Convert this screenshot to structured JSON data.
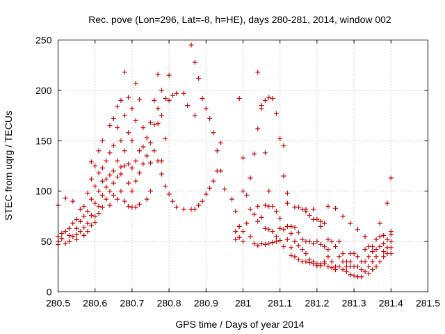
{
  "chart_data": {
    "type": "scatter",
    "title": "Rec. pove (Lon=296, Lat=-8, h=HE), days 280-281, 2014, window 002",
    "xlabel": "GPS time / Days of year 2014",
    "ylabel": "STEC from uqrg / TECUs",
    "xlim": [
      280.5,
      281.5
    ],
    "ylim": [
      0,
      250
    ],
    "x_ticks": [
      280.5,
      280.6,
      280.7,
      280.8,
      280.9,
      281,
      281.1,
      281.2,
      281.3,
      281.4,
      281.5
    ],
    "x_tick_labels": [
      "280.5",
      "280.6",
      "280.7",
      "280.8",
      "280.9",
      "281",
      "281.1",
      "281.2",
      "281.3",
      "281.4",
      "281.5"
    ],
    "y_ticks": [
      0,
      50,
      100,
      150,
      200,
      250
    ],
    "y_tick_labels": [
      "0",
      "50",
      "100",
      "150",
      "200",
      "250"
    ],
    "grid": true,
    "marker": "+",
    "color": "#cc0000",
    "points": [
      [
        280.5,
        86
      ],
      [
        280.5,
        55
      ],
      [
        280.5,
        50
      ],
      [
        280.5,
        47
      ],
      [
        280.51,
        58
      ],
      [
        280.51,
        53
      ],
      [
        280.52,
        93
      ],
      [
        280.52,
        60
      ],
      [
        280.52,
        48
      ],
      [
        280.53,
        63
      ],
      [
        280.53,
        56
      ],
      [
        280.53,
        50
      ],
      [
        280.54,
        90
      ],
      [
        280.54,
        68
      ],
      [
        280.54,
        55
      ],
      [
        280.55,
        72
      ],
      [
        280.55,
        63
      ],
      [
        280.55,
        57
      ],
      [
        280.55,
        52
      ],
      [
        280.56,
        82
      ],
      [
        280.56,
        70
      ],
      [
        280.56,
        60
      ],
      [
        280.57,
        85
      ],
      [
        280.57,
        75
      ],
      [
        280.57,
        64
      ],
      [
        280.57,
        56
      ],
      [
        280.58,
        98
      ],
      [
        280.58,
        80
      ],
      [
        280.58,
        68
      ],
      [
        280.58,
        60
      ],
      [
        280.59,
        129
      ],
      [
        280.59,
        112
      ],
      [
        280.59,
        92
      ],
      [
        280.59,
        76
      ],
      [
        280.59,
        66
      ],
      [
        280.6,
        125
      ],
      [
        280.6,
        105
      ],
      [
        280.6,
        88
      ],
      [
        280.6,
        75
      ],
      [
        280.6,
        69
      ],
      [
        280.61,
        140
      ],
      [
        280.61,
        118
      ],
      [
        280.61,
        100
      ],
      [
        280.61,
        85
      ],
      [
        280.61,
        78
      ],
      [
        280.62,
        150
      ],
      [
        280.62,
        123
      ],
      [
        280.62,
        110
      ],
      [
        280.62,
        96
      ],
      [
        280.62,
        84
      ],
      [
        280.63,
        130
      ],
      [
        280.63,
        112
      ],
      [
        280.63,
        104
      ],
      [
        280.63,
        92
      ],
      [
        280.64,
        165
      ],
      [
        280.64,
        138
      ],
      [
        280.64,
        116
      ],
      [
        280.64,
        100
      ],
      [
        280.64,
        86
      ],
      [
        280.65,
        172
      ],
      [
        280.65,
        145
      ],
      [
        280.65,
        120
      ],
      [
        280.65,
        108
      ],
      [
        280.65,
        96
      ],
      [
        280.66,
        184
      ],
      [
        280.66,
        163
      ],
      [
        280.66,
        130
      ],
      [
        280.66,
        114
      ],
      [
        280.66,
        92
      ],
      [
        280.67,
        190
      ],
      [
        280.67,
        150
      ],
      [
        280.67,
        124
      ],
      [
        280.67,
        117
      ],
      [
        280.67,
        100
      ],
      [
        280.68,
        218
      ],
      [
        280.68,
        175
      ],
      [
        280.68,
        140
      ],
      [
        280.68,
        125
      ],
      [
        280.68,
        90
      ],
      [
        280.69,
        193
      ],
      [
        280.69,
        158
      ],
      [
        280.69,
        127
      ],
      [
        280.69,
        108
      ],
      [
        280.69,
        85
      ],
      [
        280.7,
        182
      ],
      [
        280.7,
        150
      ],
      [
        280.7,
        123
      ],
      [
        280.7,
        100
      ],
      [
        280.7,
        84
      ],
      [
        280.71,
        207
      ],
      [
        280.71,
        170
      ],
      [
        280.71,
        130
      ],
      [
        280.71,
        110
      ],
      [
        280.71,
        84
      ],
      [
        280.72,
        191
      ],
      [
        280.72,
        140
      ],
      [
        280.72,
        118
      ],
      [
        280.72,
        87
      ],
      [
        280.73,
        163
      ],
      [
        280.73,
        144
      ],
      [
        280.73,
        127
      ],
      [
        280.74,
        153
      ],
      [
        280.74,
        135
      ],
      [
        280.74,
        92
      ],
      [
        280.75,
        168
      ],
      [
        280.75,
        148
      ],
      [
        280.75,
        128
      ],
      [
        280.75,
        100
      ],
      [
        280.76,
        190
      ],
      [
        280.76,
        166
      ],
      [
        280.76,
        140
      ],
      [
        280.77,
        216
      ],
      [
        280.77,
        182
      ],
      [
        280.77,
        167
      ],
      [
        280.77,
        130
      ],
      [
        280.78,
        200
      ],
      [
        280.78,
        175
      ],
      [
        280.78,
        130
      ],
      [
        280.78,
        117
      ],
      [
        280.79,
        192
      ],
      [
        280.79,
        152
      ],
      [
        280.79,
        105
      ],
      [
        280.8,
        215
      ],
      [
        280.8,
        190
      ],
      [
        280.8,
        97
      ],
      [
        280.81,
        195
      ],
      [
        280.81,
        90
      ],
      [
        280.82,
        197
      ],
      [
        280.82,
        84
      ],
      [
        280.84,
        197
      ],
      [
        280.84,
        82
      ],
      [
        280.85,
        185
      ],
      [
        280.86,
        245
      ],
      [
        280.86,
        82
      ],
      [
        280.87,
        228
      ],
      [
        280.87,
        175
      ],
      [
        280.87,
        82
      ],
      [
        280.88,
        212
      ],
      [
        280.88,
        86
      ],
      [
        280.89,
        192
      ],
      [
        280.89,
        90
      ],
      [
        280.9,
        182
      ],
      [
        280.9,
        97
      ],
      [
        280.91,
        172
      ],
      [
        280.91,
        103
      ],
      [
        280.92,
        158
      ],
      [
        280.92,
        110
      ],
      [
        280.93,
        140
      ],
      [
        280.93,
        120
      ],
      [
        280.94,
        148
      ],
      [
        280.94,
        120
      ],
      [
        280.95,
        102
      ],
      [
        280.97,
        92
      ],
      [
        280.98,
        80
      ],
      [
        280.98,
        60
      ],
      [
        280.98,
        52
      ],
      [
        280.99,
        192
      ],
      [
        280.99,
        65
      ],
      [
        280.99,
        54
      ],
      [
        281.0,
        133
      ],
      [
        281.0,
        100
      ],
      [
        281.0,
        60
      ],
      [
        281.0,
        50
      ],
      [
        281.01,
        96
      ],
      [
        281.01,
        68
      ],
      [
        281.02,
        113
      ],
      [
        281.02,
        82
      ],
      [
        281.02,
        55
      ],
      [
        281.03,
        137
      ],
      [
        281.03,
        77
      ],
      [
        281.03,
        48
      ],
      [
        281.04,
        218
      ],
      [
        281.04,
        162
      ],
      [
        281.04,
        85
      ],
      [
        281.04,
        70
      ],
      [
        281.04,
        46
      ],
      [
        281.05,
        185
      ],
      [
        281.05,
        182
      ],
      [
        281.05,
        74
      ],
      [
        281.05,
        48
      ],
      [
        281.06,
        190
      ],
      [
        281.06,
        138
      ],
      [
        281.06,
        86
      ],
      [
        281.06,
        63
      ],
      [
        281.06,
        47
      ],
      [
        281.07,
        193
      ],
      [
        281.07,
        100
      ],
      [
        281.07,
        85
      ],
      [
        281.07,
        62
      ],
      [
        281.07,
        48
      ],
      [
        281.08,
        192
      ],
      [
        281.08,
        85
      ],
      [
        281.08,
        60
      ],
      [
        281.08,
        49
      ],
      [
        281.09,
        177
      ],
      [
        281.09,
        80
      ],
      [
        281.09,
        55
      ],
      [
        281.09,
        50
      ],
      [
        281.1,
        152
      ],
      [
        281.1,
        73
      ],
      [
        281.1,
        63
      ],
      [
        281.1,
        51
      ],
      [
        281.11,
        145
      ],
      [
        281.11,
        115
      ],
      [
        281.11,
        62
      ],
      [
        281.11,
        45
      ],
      [
        281.12,
        98
      ],
      [
        281.12,
        88
      ],
      [
        281.12,
        65
      ],
      [
        281.12,
        52
      ],
      [
        281.13,
        65
      ],
      [
        281.13,
        58
      ],
      [
        281.13,
        44
      ],
      [
        281.13,
        36
      ],
      [
        281.14,
        84
      ],
      [
        281.14,
        64
      ],
      [
        281.14,
        50
      ],
      [
        281.14,
        35
      ],
      [
        281.15,
        84
      ],
      [
        281.15,
        59
      ],
      [
        281.15,
        46
      ],
      [
        281.15,
        32
      ],
      [
        281.16,
        82
      ],
      [
        281.16,
        52
      ],
      [
        281.16,
        42
      ],
      [
        281.16,
        30
      ],
      [
        281.17,
        80
      ],
      [
        281.17,
        50
      ],
      [
        281.17,
        38
      ],
      [
        281.17,
        30
      ],
      [
        281.18,
        76
      ],
      [
        281.18,
        50
      ],
      [
        281.18,
        32
      ],
      [
        281.18,
        29
      ],
      [
        281.19,
        72
      ],
      [
        281.19,
        48
      ],
      [
        281.19,
        30
      ],
      [
        281.19,
        28
      ],
      [
        281.2,
        72
      ],
      [
        281.2,
        50
      ],
      [
        281.2,
        28
      ],
      [
        281.2,
        26
      ],
      [
        281.21,
        70
      ],
      [
        281.21,
        47
      ],
      [
        281.21,
        28
      ],
      [
        281.21,
        26
      ],
      [
        281.22,
        68
      ],
      [
        281.22,
        45
      ],
      [
        281.22,
        30
      ],
      [
        281.22,
        28
      ],
      [
        281.23,
        52
      ],
      [
        281.23,
        42
      ],
      [
        281.23,
        35
      ],
      [
        281.23,
        25
      ],
      [
        281.24,
        50
      ],
      [
        281.24,
        30
      ],
      [
        281.24,
        24
      ],
      [
        281.25,
        45
      ],
      [
        281.25,
        25
      ],
      [
        281.25,
        22
      ],
      [
        281.26,
        50
      ],
      [
        281.26,
        35
      ],
      [
        281.26,
        25
      ],
      [
        281.27,
        38
      ],
      [
        281.27,
        30
      ],
      [
        281.27,
        22
      ],
      [
        281.28,
        30
      ],
      [
        281.28,
        25
      ],
      [
        281.28,
        20
      ],
      [
        281.29,
        38
      ],
      [
        281.29,
        30
      ],
      [
        281.29,
        25
      ],
      [
        281.29,
        17
      ],
      [
        281.3,
        38
      ],
      [
        281.3,
        25
      ],
      [
        281.3,
        16
      ],
      [
        281.31,
        35
      ],
      [
        281.31,
        25
      ],
      [
        281.31,
        15
      ],
      [
        281.32,
        30
      ],
      [
        281.32,
        22
      ],
      [
        281.32,
        15
      ],
      [
        281.33,
        42
      ],
      [
        281.33,
        30
      ],
      [
        281.33,
        20
      ],
      [
        281.34,
        45
      ],
      [
        281.34,
        35
      ],
      [
        281.34,
        25
      ],
      [
        281.34,
        18
      ],
      [
        281.35,
        40
      ],
      [
        281.35,
        30
      ],
      [
        281.35,
        22
      ],
      [
        281.36,
        52
      ],
      [
        281.36,
        42
      ],
      [
        281.36,
        35
      ],
      [
        281.36,
        25
      ],
      [
        281.37,
        68
      ],
      [
        281.37,
        55
      ],
      [
        281.37,
        45
      ],
      [
        281.37,
        30
      ],
      [
        281.38,
        56
      ],
      [
        281.38,
        48
      ],
      [
        281.38,
        40
      ],
      [
        281.38,
        35
      ],
      [
        281.39,
        88
      ],
      [
        281.39,
        52
      ],
      [
        281.39,
        44
      ],
      [
        281.39,
        38
      ],
      [
        281.4,
        113
      ],
      [
        281.4,
        60
      ],
      [
        281.4,
        57
      ],
      [
        281.4,
        50
      ],
      [
        281.4,
        44
      ],
      [
        281.4,
        38
      ],
      [
        281.23,
        85
      ],
      [
        281.21,
        65
      ],
      [
        281.19,
        82
      ],
      [
        281.17,
        82
      ],
      [
        281.25,
        83
      ],
      [
        281.27,
        75
      ],
      [
        281.29,
        68
      ],
      [
        281.31,
        62
      ],
      [
        281.33,
        55
      ],
      [
        281.35,
        45
      ]
    ]
  }
}
